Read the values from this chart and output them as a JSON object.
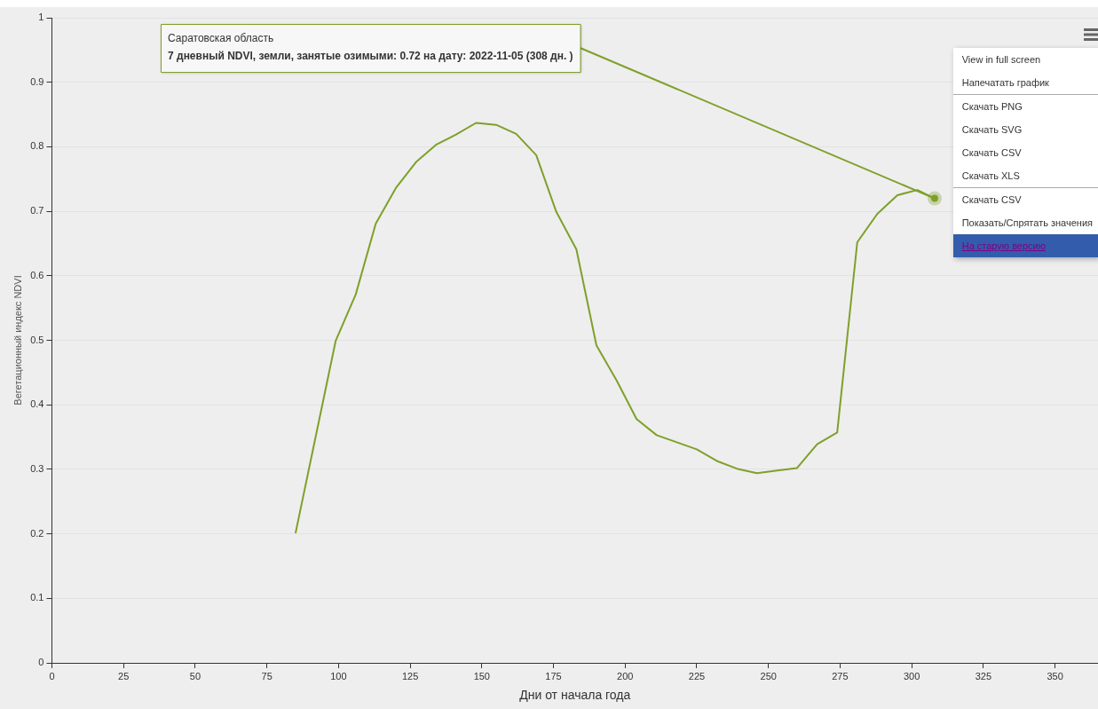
{
  "chart_data": {
    "type": "line",
    "xlabel": "Дни от начала года",
    "ylabel": "Вегетационный индекс NDVI",
    "x": [
      85,
      99,
      106,
      113,
      120,
      127,
      134,
      141,
      148,
      155,
      162,
      169,
      176,
      183,
      190,
      197,
      204,
      211,
      218,
      225,
      232,
      239,
      246,
      253,
      260,
      267,
      274,
      281,
      288,
      295,
      302,
      308
    ],
    "series": [
      {
        "color": "#7ea02a",
        "values": [
          0.201,
          0.499,
          0.571,
          0.681,
          0.736,
          0.776,
          0.803,
          0.819,
          0.837,
          0.834,
          0.82,
          0.787,
          0.699,
          0.641,
          0.492,
          0.438,
          0.378,
          0.353,
          0.342,
          0.331,
          0.313,
          0.301,
          0.294,
          0.298,
          0.302,
          0.339,
          0.357,
          0.652,
          0.696,
          0.725,
          0.733,
          0.72
        ]
      }
    ],
    "xlim": [
      0,
      365
    ],
    "xticks": [
      0,
      25,
      50,
      75,
      100,
      125,
      150,
      175,
      200,
      225,
      250,
      275,
      300,
      325,
      350
    ],
    "ylim": [
      0,
      1
    ],
    "yticks": [
      0,
      0.1,
      0.2,
      0.3,
      0.4,
      0.5,
      0.6,
      0.7,
      0.8,
      0.9,
      1
    ],
    "grid": "y",
    "legend": false,
    "marker": "none",
    "line_style": "solid",
    "annotations": [
      {
        "text": "Саратовская область\n7 дневный NDVI, земли, занятые озимыми: 0.72 на дату: 2022-11-05 (308 дн. )",
        "x": 308,
        "y": 0.72
      },
      "View in full screen",
      "Напечатать график",
      "Скачать PNG",
      "Скачать SVG",
      "Скачать CSV",
      "Скачать XLS",
      "Скачать CSV",
      "Показать/Спрятать значения",
      "На старую версию"
    ]
  }
}
